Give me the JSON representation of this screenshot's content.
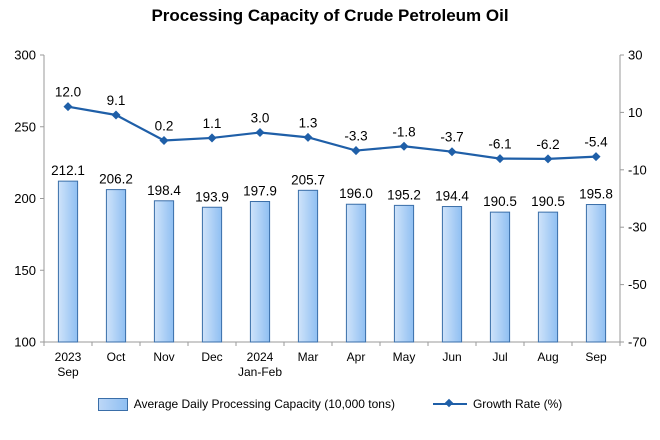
{
  "colors": {
    "bar_fill_light": "#cfe3fa",
    "bar_fill_dark": "#8fbff2",
    "bar_border": "#3a6ea8",
    "line": "#1f5fa8",
    "axis": "#9a9a9a"
  },
  "chart_data": {
    "type": "bar",
    "title": "Processing Capacity of Crude Petroleum Oil",
    "categories": [
      [
        "2023",
        "Sep"
      ],
      [
        "Oct"
      ],
      [
        "Nov"
      ],
      [
        "Dec"
      ],
      [
        "2024",
        "Jan-Feb"
      ],
      [
        "Mar"
      ],
      [
        "Apr"
      ],
      [
        "May"
      ],
      [
        "Jun"
      ],
      [
        "Jul"
      ],
      [
        "Aug"
      ],
      [
        "Sep"
      ]
    ],
    "series": [
      {
        "name": "Average Daily Processing Capacity (10,000 tons)",
        "type": "bar",
        "axis": "left",
        "values": [
          212.1,
          206.2,
          198.4,
          193.9,
          197.9,
          205.7,
          196.0,
          195.2,
          194.4,
          190.5,
          190.5,
          195.8
        ],
        "labels": [
          "212.1",
          "206.2",
          "198.4",
          "193.9",
          "197.9",
          "205.7",
          "196.0",
          "195.2",
          "194.4",
          "190.5",
          "190.5",
          "195.8"
        ]
      },
      {
        "name": "Growth Rate (%)",
        "type": "line",
        "axis": "right",
        "values": [
          12.0,
          9.1,
          0.2,
          1.1,
          3.0,
          1.3,
          -3.3,
          -1.8,
          -3.7,
          -6.1,
          -6.2,
          -5.4
        ],
        "labels": [
          "12.0",
          "9.1",
          "0.2",
          "1.1",
          "3.0",
          "1.3",
          "-3.3",
          "-1.8",
          "-3.7",
          "-6.1",
          "-6.2",
          "-5.4"
        ]
      }
    ],
    "ylim_left": [
      100,
      300
    ],
    "yticks_left": [
      100,
      150,
      200,
      250,
      300
    ],
    "ylim_right": [
      -70,
      30
    ],
    "yticks_right": [
      -70,
      -50,
      -30,
      -10,
      10,
      30
    ],
    "grid": false,
    "legend": "bottom"
  }
}
